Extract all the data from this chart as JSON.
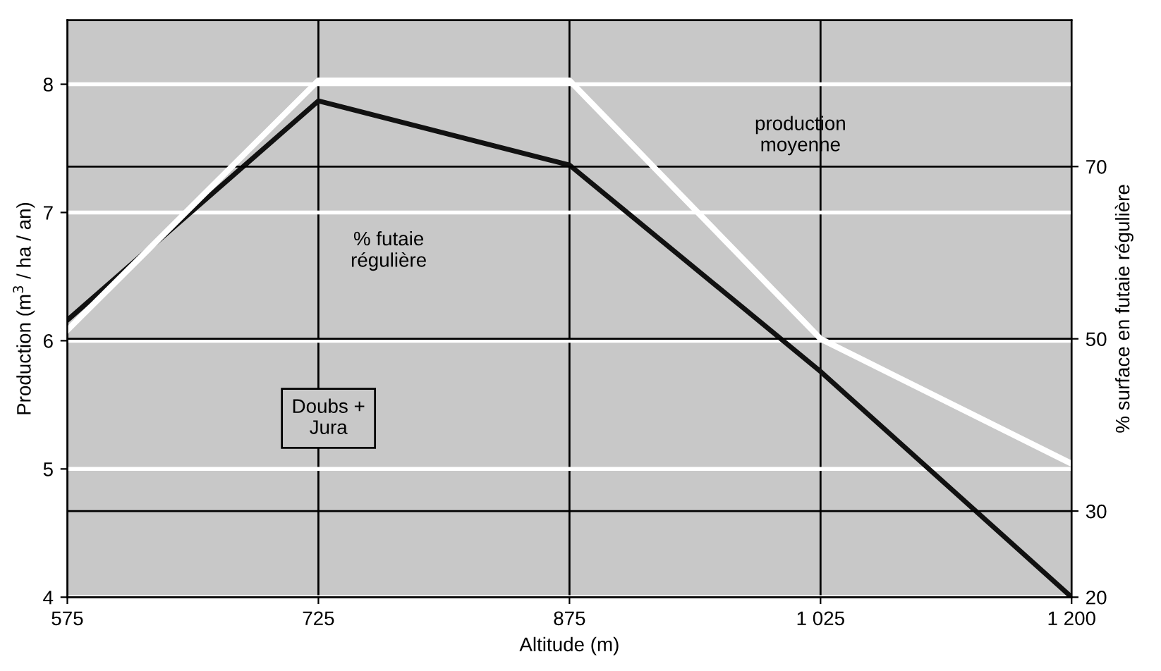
{
  "chart_data": {
    "type": "line",
    "xlabel": "Altitude (m)",
    "ylabel": "Production (m$^{3}$ / ha / an)",
    "y2label": "% surface en futaie régulière",
    "categories": [
      "575",
      "725",
      "875",
      "1 025",
      "1 200"
    ],
    "series": [
      {
        "color": "#111111",
        "values": [
          6.16,
          7.87,
          7.37,
          5.76,
          4.0
        ]
      },
      {
        "color": "#ffffff",
        "axis": "y2",
        "values": [
          51,
          80,
          80,
          50,
          35.5
        ]
      }
    ],
    "ylim": [
      4,
      8.5
    ],
    "yticks": [
      4,
      5,
      6,
      7,
      8
    ],
    "y2lim": [
      20,
      87
    ],
    "y2ticks": [
      20,
      30,
      50,
      70
    ],
    "grid": true,
    "legend": false,
    "marker": "none",
    "line_style": "solid",
    "annotations": [
      "production moyenne",
      "% futaie régulière",
      "Doubs + Jura"
    ]
  }
}
